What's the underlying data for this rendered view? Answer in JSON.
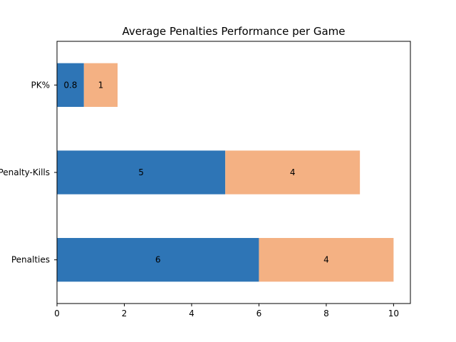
{
  "chart_data": {
    "type": "bar",
    "orientation": "horizontal",
    "stacked": true,
    "title": "Average Penalties Performance per Game",
    "xlabel": "",
    "ylabel": "",
    "categories": [
      "Penalties",
      "Penalty-Kills",
      "PK%"
    ],
    "series": [
      {
        "values": [
          6,
          5,
          0.8
        ],
        "color": "#2e75b6"
      },
      {
        "values": [
          4,
          4,
          1
        ],
        "color": "#f4b183"
      }
    ],
    "data_labels": [
      [
        "6",
        "5",
        "0.8"
      ],
      [
        "4",
        "4",
        "1"
      ]
    ],
    "xlim": [
      0,
      10.5
    ],
    "xticks": [
      0,
      2,
      4,
      6,
      8,
      10
    ],
    "grid": false,
    "legend": "none"
  }
}
